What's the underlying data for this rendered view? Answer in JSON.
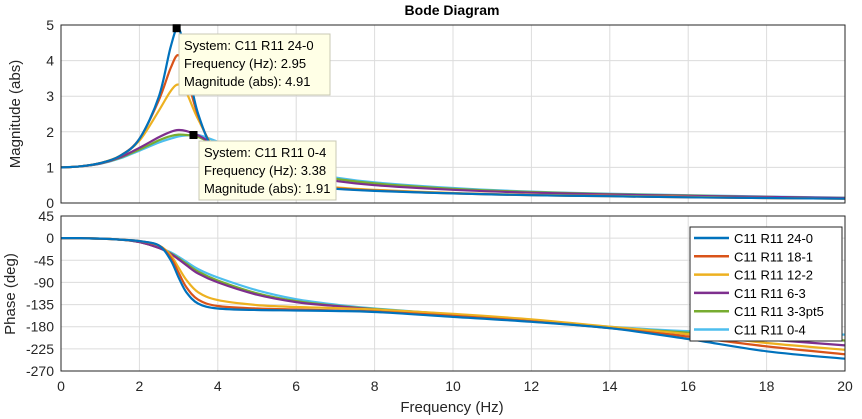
{
  "chart_data": {
    "type": "line",
    "title": "Bode Diagram",
    "xlabel": "Frequency  (Hz)",
    "x_ticks": [
      "0",
      "2",
      "4",
      "6",
      "8",
      "10",
      "12",
      "14",
      "16",
      "18",
      "20"
    ],
    "xlim": [
      0,
      20
    ],
    "grid": true,
    "legend_location": "right, lower subplot",
    "x": [
      0,
      0.5,
      1,
      1.5,
      2,
      2.5,
      2.8,
      3,
      3.2,
      3.5,
      4,
      5,
      6,
      7,
      8,
      10,
      12,
      14,
      16,
      18,
      20
    ],
    "magnitude": {
      "ylabel": "Magnitude (abs)",
      "ylim": [
        0,
        5
      ],
      "y_ticks": [
        "0",
        "1",
        "2",
        "3",
        "4",
        "5"
      ],
      "series": [
        {
          "name": "C11 R11 24-0",
          "color": "#0072BD",
          "values": [
            1.0,
            1.03,
            1.12,
            1.32,
            1.8,
            3.0,
            4.4,
            4.91,
            4.0,
            2.5,
            1.35,
            0.72,
            0.5,
            0.4,
            0.34,
            0.27,
            0.22,
            0.19,
            0.16,
            0.14,
            0.12
          ]
        },
        {
          "name": "C11 R11 18-1",
          "color": "#D95319",
          "values": [
            1.0,
            1.03,
            1.12,
            1.32,
            1.8,
            2.9,
            3.8,
            4.15,
            3.6,
            2.45,
            1.38,
            0.75,
            0.52,
            0.41,
            0.35,
            0.27,
            0.22,
            0.19,
            0.16,
            0.14,
            0.12
          ]
        },
        {
          "name": "C11 R11 12-2",
          "color": "#EDB120",
          "values": [
            1.0,
            1.03,
            1.12,
            1.32,
            1.75,
            2.6,
            3.15,
            3.33,
            3.1,
            2.35,
            1.45,
            0.8,
            0.56,
            0.44,
            0.37,
            0.28,
            0.23,
            0.2,
            0.17,
            0.14,
            0.12
          ]
        },
        {
          "name": "C11 R11 6-3",
          "color": "#7E2F8E",
          "values": [
            1.0,
            1.03,
            1.11,
            1.28,
            1.55,
            1.85,
            2.0,
            2.05,
            2.02,
            1.9,
            1.6,
            1.1,
            0.8,
            0.62,
            0.5,
            0.37,
            0.29,
            0.24,
            0.2,
            0.17,
            0.14
          ]
        },
        {
          "name": "C11 R11 3-3pt5",
          "color": "#77AC30",
          "values": [
            1.0,
            1.03,
            1.11,
            1.27,
            1.5,
            1.76,
            1.88,
            1.92,
            1.91,
            1.85,
            1.62,
            1.15,
            0.86,
            0.68,
            0.55,
            0.4,
            0.31,
            0.25,
            0.21,
            0.17,
            0.14
          ]
        },
        {
          "name": "C11 R11 0-4",
          "color": "#4DBEEE",
          "values": [
            1.0,
            1.03,
            1.1,
            1.25,
            1.47,
            1.7,
            1.81,
            1.87,
            1.9,
            1.91,
            1.72,
            1.25,
            0.92,
            0.72,
            0.58,
            0.42,
            0.32,
            0.26,
            0.22,
            0.18,
            0.15
          ]
        }
      ]
    },
    "phase": {
      "ylabel": "Phase (deg)",
      "ylim": [
        -270,
        45
      ],
      "y_ticks": [
        "45",
        "0",
        "-45",
        "-90",
        "-135",
        "-180",
        "-225",
        "-270"
      ],
      "series": [
        {
          "name": "C11 R11 24-0",
          "color": "#0072BD",
          "values": [
            0,
            0,
            -1,
            -3,
            -6,
            -15,
            -45,
            -80,
            -110,
            -133,
            -143,
            -146,
            -147,
            -148,
            -150,
            -160,
            -170,
            -183,
            -205,
            -230,
            -245
          ]
        },
        {
          "name": "C11 R11 18-1",
          "color": "#D95319",
          "values": [
            0,
            0,
            -1,
            -3,
            -6,
            -15,
            -40,
            -70,
            -100,
            -125,
            -138,
            -143,
            -145,
            -147,
            -149,
            -158,
            -169,
            -183,
            -200,
            -220,
            -236
          ]
        },
        {
          "name": "C11 R11 12-2",
          "color": "#EDB120",
          "values": [
            0,
            0,
            -1,
            -3,
            -6,
            -15,
            -35,
            -60,
            -85,
            -110,
            -126,
            -136,
            -140,
            -142,
            -145,
            -154,
            -165,
            -180,
            -195,
            -213,
            -227
          ]
        },
        {
          "name": "C11 R11 6-3",
          "color": "#7E2F8E",
          "values": [
            0,
            0,
            -1,
            -3,
            -8,
            -20,
            -32,
            -43,
            -55,
            -72,
            -90,
            -115,
            -130,
            -138,
            -145,
            -156,
            -168,
            -182,
            -195,
            -206,
            -218
          ]
        },
        {
          "name": "C11 R11 3-3pt5",
          "color": "#77AC30",
          "values": [
            0,
            0,
            -1,
            -3,
            -8,
            -20,
            -31,
            -41,
            -52,
            -68,
            -86,
            -112,
            -128,
            -137,
            -144,
            -155,
            -167,
            -181,
            -192,
            -200,
            -208
          ]
        },
        {
          "name": "C11 R11 0-4",
          "color": "#4DBEEE",
          "values": [
            0,
            0,
            -1,
            -3,
            -8,
            -19,
            -29,
            -38,
            -48,
            -63,
            -80,
            -106,
            -124,
            -135,
            -143,
            -155,
            -168,
            -180,
            -189,
            -193,
            -196
          ]
        }
      ]
    },
    "annotations": [
      {
        "series": "C11 R11 24-0",
        "x": 2.95,
        "y": 4.91,
        "lines": [
          "System: C11 R11 24-0",
          "Frequency (Hz): 2.95",
          "Magnitude (abs): 4.91"
        ]
      },
      {
        "series": "C11 R11 0-4",
        "x": 3.38,
        "y": 1.91,
        "lines": [
          "System: C11 R11 0-4",
          "Frequency (Hz): 3.38",
          "Magnitude (abs): 1.91"
        ]
      }
    ]
  }
}
